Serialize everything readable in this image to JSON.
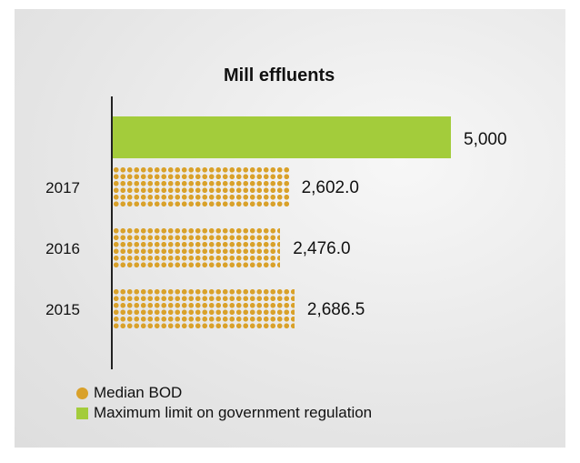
{
  "chart_data": {
    "type": "bar",
    "orientation": "horizontal",
    "title": "Mill effluents",
    "xlabel": "",
    "ylabel": "",
    "xlim": [
      0,
      5000
    ],
    "grid": false,
    "legend_placement": "bottom-left",
    "reference": {
      "name": "Maximum limit on government regulation",
      "value": 5000,
      "label": "5,000"
    },
    "categories": [
      "2017",
      "2016",
      "2015"
    ],
    "series": [
      {
        "name": "Median BOD",
        "values": [
          2602.0,
          2476.0,
          2686.5
        ],
        "labels": [
          "2,602.0",
          "2,476.0",
          "2,686.5"
        ]
      }
    ],
    "colors": {
      "median": "#d9a12a",
      "limit": "#a3cc3b"
    }
  }
}
